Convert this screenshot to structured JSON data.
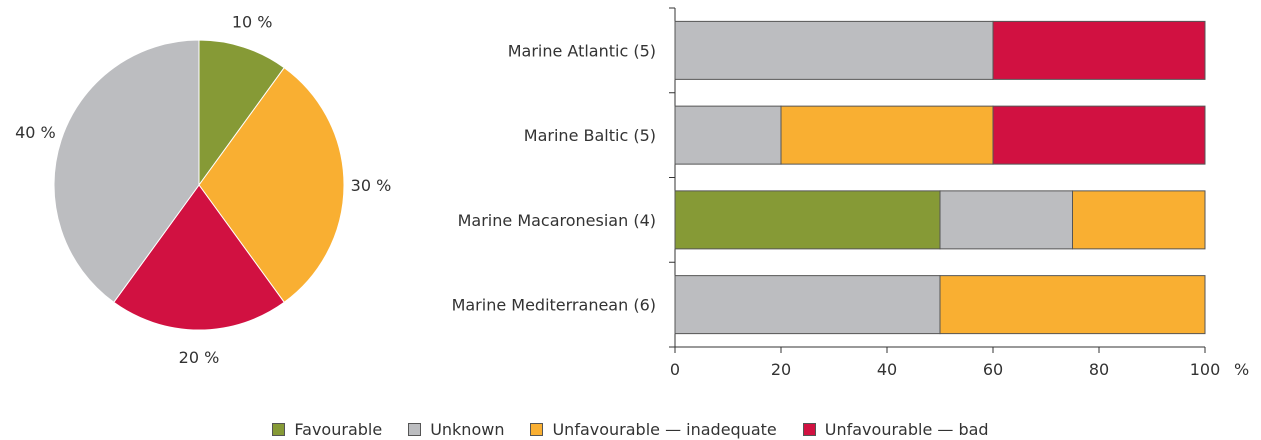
{
  "colors": {
    "Favourable": "#869a36",
    "Unknown": "#bcbdc0",
    "Unfavourable — inadequate": "#f9af32",
    "Unfavourable — bad": "#d11141"
  },
  "chart_data": [
    {
      "type": "pie",
      "slices": [
        {
          "name": "Favourable",
          "value": 10,
          "label": "10 %"
        },
        {
          "name": "Unfavourable — inadequate",
          "value": 30,
          "label": "30 %"
        },
        {
          "name": "Unfavourable — bad",
          "value": 20,
          "label": "20 %"
        },
        {
          "name": "Unknown",
          "value": 40,
          "label": "40 %"
        }
      ]
    },
    {
      "type": "bar",
      "orientation": "horizontal",
      "stacked": true,
      "categories": [
        "Marine Atlantic (5)",
        "Marine Baltic (5)",
        "Marine Macaronesian (4)",
        "Marine Mediterranean (6)"
      ],
      "series": [
        {
          "name": "Favourable",
          "values": [
            0,
            0,
            50,
            0
          ]
        },
        {
          "name": "Unknown",
          "values": [
            60,
            20,
            25,
            50
          ]
        },
        {
          "name": "Unfavourable — inadequate",
          "values": [
            0,
            40,
            25,
            50
          ]
        },
        {
          "name": "Unfavourable — bad",
          "values": [
            40,
            40,
            0,
            0
          ]
        }
      ],
      "xlim": [
        0,
        100
      ],
      "xticks": [
        "0",
        "20",
        "40",
        "60",
        "80",
        "100"
      ],
      "xunit": "%"
    }
  ],
  "legend": {
    "position": "bottom",
    "items": [
      "Favourable",
      "Unknown",
      "Unfavourable — inadequate",
      "Unfavourable — bad"
    ]
  }
}
